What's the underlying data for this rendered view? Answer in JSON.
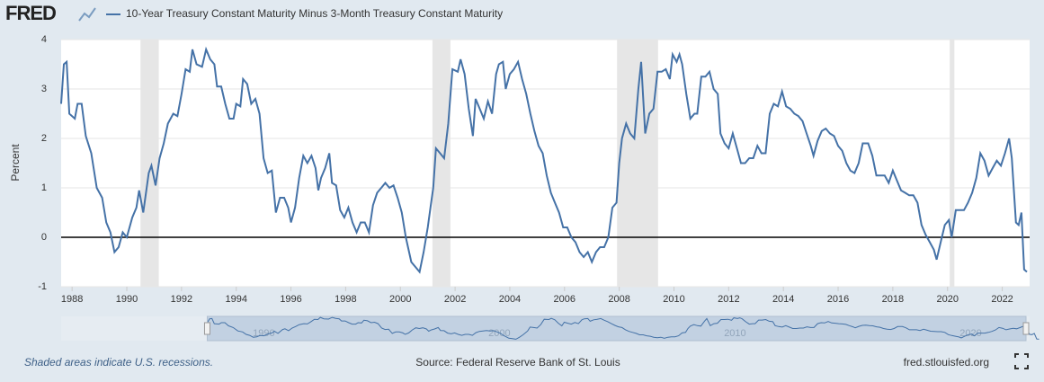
{
  "chart_data": {
    "type": "line",
    "logo": "FRED",
    "y_label": "Percent",
    "xlim": [
      1987.6,
      2023.0
    ],
    "xticks": [
      1988,
      1990,
      1992,
      1994,
      1996,
      1998,
      2000,
      2002,
      2004,
      2006,
      2008,
      2010,
      2012,
      2014,
      2016,
      2018,
      2020,
      2022
    ],
    "ylim": [
      -1,
      4
    ],
    "yticks": [
      -1,
      0,
      1,
      2,
      3,
      4
    ],
    "grid": true,
    "zero_line": true,
    "recession_color": "#e6e6e6",
    "recessions": [
      [
        1990.5,
        1991.17
      ],
      [
        2001.17,
        2001.83
      ],
      [
        2007.92,
        2009.42
      ],
      [
        2020.08,
        2020.25
      ]
    ],
    "x": [
      1987.6,
      1987.7,
      1987.8,
      1987.9,
      1988.1,
      1988.2,
      1988.35,
      1988.5,
      1988.7,
      1988.9,
      1989.1,
      1989.25,
      1989.4,
      1989.55,
      1989.7,
      1989.85,
      1990.0,
      1990.2,
      1990.35,
      1990.45,
      1990.6,
      1990.8,
      1990.9,
      1991.05,
      1991.2,
      1991.35,
      1991.5,
      1991.7,
      1991.85,
      1992.0,
      1992.15,
      1992.3,
      1992.4,
      1992.55,
      1992.75,
      1992.9,
      1993.05,
      1993.2,
      1993.3,
      1993.45,
      1993.6,
      1993.75,
      1993.9,
      1994.0,
      1994.15,
      1994.25,
      1994.4,
      1994.55,
      1994.7,
      1994.85,
      1995.0,
      1995.15,
      1995.3,
      1995.45,
      1995.6,
      1995.75,
      1995.9,
      1996.0,
      1996.15,
      1996.3,
      1996.45,
      1996.6,
      1996.75,
      1996.9,
      1997.0,
      1997.1,
      1997.25,
      1997.4,
      1997.5,
      1997.65,
      1997.8,
      1997.95,
      1998.1,
      1998.25,
      1998.4,
      1998.55,
      1998.7,
      1998.85,
      1999.0,
      1999.15,
      1999.3,
      1999.45,
      1999.6,
      1999.75,
      1999.9,
      2000.05,
      2000.2,
      2000.4,
      2000.55,
      2000.7,
      2000.85,
      2001.0,
      2001.1,
      2001.2,
      2001.3,
      2001.45,
      2001.6,
      2001.75,
      2001.9,
      2002.1,
      2002.2,
      2002.35,
      2002.5,
      2002.65,
      2002.75,
      2002.9,
      2003.05,
      2003.2,
      2003.35,
      2003.5,
      2003.6,
      2003.75,
      2003.85,
      2004.0,
      2004.15,
      2004.3,
      2004.45,
      2004.6,
      2004.75,
      2004.9,
      2005.05,
      2005.2,
      2005.35,
      2005.5,
      2005.65,
      2005.8,
      2005.95,
      2006.1,
      2006.25,
      2006.4,
      2006.55,
      2006.7,
      2006.85,
      2007.0,
      2007.15,
      2007.3,
      2007.45,
      2007.6,
      2007.75,
      2007.9,
      2008.0,
      2008.1,
      2008.25,
      2008.4,
      2008.55,
      2008.7,
      2008.8,
      2008.95,
      2009.1,
      2009.25,
      2009.4,
      2009.55,
      2009.7,
      2009.85,
      2009.95,
      2010.1,
      2010.2,
      2010.3,
      2010.45,
      2010.6,
      2010.75,
      2010.85,
      2011.0,
      2011.15,
      2011.3,
      2011.45,
      2011.6,
      2011.7,
      2011.85,
      2012.0,
      2012.15,
      2012.3,
      2012.45,
      2012.6,
      2012.75,
      2012.9,
      2013.05,
      2013.2,
      2013.35,
      2013.5,
      2013.65,
      2013.8,
      2013.95,
      2014.1,
      2014.25,
      2014.4,
      2014.55,
      2014.7,
      2014.85,
      2015.0,
      2015.1,
      2015.25,
      2015.4,
      2015.55,
      2015.7,
      2015.85,
      2016.0,
      2016.15,
      2016.3,
      2016.45,
      2016.6,
      2016.75,
      2016.9,
      2017.1,
      2017.25,
      2017.4,
      2017.55,
      2017.7,
      2017.85,
      2018.0,
      2018.15,
      2018.3,
      2018.45,
      2018.6,
      2018.75,
      2018.9,
      2019.05,
      2019.2,
      2019.35,
      2019.5,
      2019.6,
      2019.75,
      2019.9,
      2020.05,
      2020.15,
      2020.3,
      2020.45,
      2020.6,
      2020.75,
      2020.9,
      2021.05,
      2021.2,
      2021.35,
      2021.5,
      2021.65,
      2021.8,
      2021.95,
      2022.1,
      2022.25,
      2022.35,
      2022.5,
      2022.6,
      2022.7,
      2022.8,
      2022.9
    ],
    "series": [
      {
        "name": "10-Year Treasury Constant Maturity Minus 3-Month Treasury Constant Maturity",
        "color": "#4572a7",
        "values": [
          2.7,
          3.5,
          3.55,
          2.5,
          2.4,
          2.7,
          2.7,
          2.05,
          1.7,
          1.0,
          0.8,
          0.3,
          0.1,
          -0.3,
          -0.2,
          0.1,
          0.0,
          0.4,
          0.6,
          0.95,
          0.5,
          1.3,
          1.45,
          1.05,
          1.6,
          1.9,
          2.3,
          2.5,
          2.45,
          2.9,
          3.4,
          3.35,
          3.8,
          3.5,
          3.45,
          3.8,
          3.6,
          3.5,
          3.05,
          3.05,
          2.7,
          2.4,
          2.4,
          2.7,
          2.65,
          3.2,
          3.1,
          2.7,
          2.8,
          2.5,
          1.6,
          1.3,
          1.35,
          0.5,
          0.8,
          0.8,
          0.6,
          0.3,
          0.6,
          1.2,
          1.65,
          1.5,
          1.65,
          1.4,
          0.95,
          1.2,
          1.4,
          1.7,
          1.1,
          1.05,
          0.55,
          0.4,
          0.6,
          0.3,
          0.1,
          0.3,
          0.3,
          0.1,
          0.65,
          0.9,
          1.0,
          1.1,
          1.0,
          1.05,
          0.8,
          0.5,
          0.0,
          -0.5,
          -0.6,
          -0.7,
          -0.3,
          0.2,
          0.6,
          1.0,
          1.8,
          1.7,
          1.6,
          2.3,
          3.4,
          3.35,
          3.6,
          3.3,
          2.6,
          2.05,
          2.8,
          2.6,
          2.4,
          2.75,
          2.5,
          3.3,
          3.5,
          3.55,
          3.0,
          3.3,
          3.4,
          3.55,
          3.2,
          2.9,
          2.5,
          2.15,
          1.85,
          1.7,
          1.25,
          0.9,
          0.7,
          0.5,
          0.2,
          0.2,
          0.0,
          -0.1,
          -0.3,
          -0.4,
          -0.3,
          -0.5,
          -0.3,
          -0.2,
          -0.2,
          0.0,
          0.6,
          0.7,
          1.5,
          2.0,
          2.3,
          2.1,
          2.0,
          3.0,
          3.55,
          2.1,
          2.5,
          2.6,
          3.35,
          3.35,
          3.4,
          3.2,
          3.7,
          3.55,
          3.7,
          3.5,
          2.9,
          2.4,
          2.5,
          2.5,
          3.25,
          3.25,
          3.35,
          3.0,
          2.9,
          2.1,
          1.9,
          1.8,
          2.1,
          1.8,
          1.5,
          1.5,
          1.6,
          1.6,
          1.85,
          1.7,
          1.7,
          2.5,
          2.7,
          2.65,
          2.95,
          2.65,
          2.6,
          2.5,
          2.45,
          2.35,
          2.1,
          1.85,
          1.65,
          1.95,
          2.15,
          2.2,
          2.1,
          2.05,
          1.85,
          1.75,
          1.5,
          1.35,
          1.3,
          1.5,
          1.9,
          1.9,
          1.65,
          1.25,
          1.25,
          1.25,
          1.1,
          1.35,
          1.15,
          0.95,
          0.9,
          0.85,
          0.85,
          0.7,
          0.25,
          0.05,
          -0.1,
          -0.25,
          -0.45,
          -0.1,
          0.25,
          0.35,
          0.0,
          0.55,
          0.55,
          0.55,
          0.7,
          0.9,
          1.2,
          1.7,
          1.55,
          1.25,
          1.4,
          1.55,
          1.45,
          1.7,
          2.0,
          1.6,
          0.3,
          0.25,
          0.5,
          -0.65,
          -0.7
        ]
      }
    ],
    "navigator": {
      "xlim": [
        1981.4,
        2022.5
      ],
      "xticks": [
        1990,
        2000,
        2010,
        2020
      ]
    },
    "note": "Shaded areas indicate U.S. recessions.",
    "source": "Source: Federal Reserve Bank of St. Louis",
    "site": "fred.stlouisfed.org"
  }
}
